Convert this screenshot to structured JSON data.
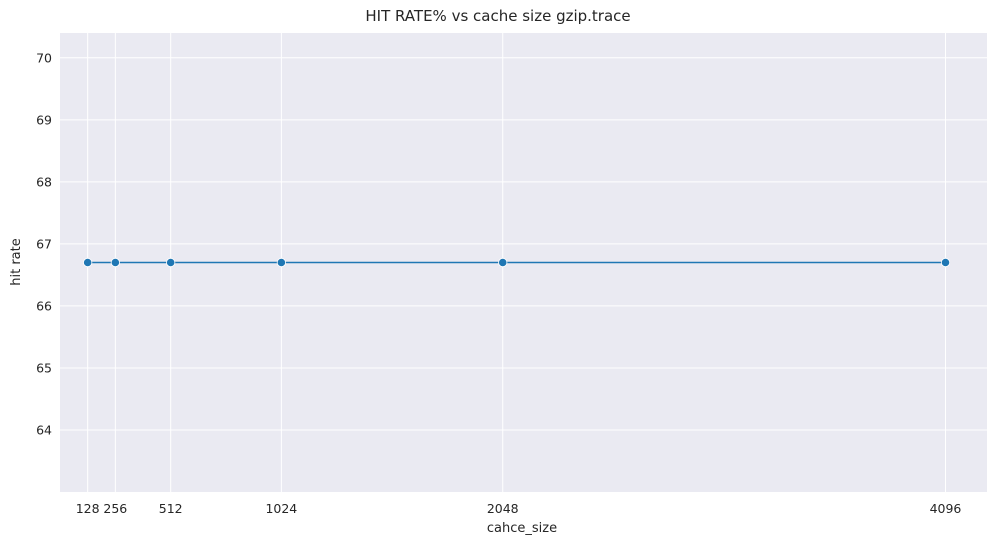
{
  "chart_data": {
    "type": "line",
    "title": "HIT RATE% vs cache size gzip.trace",
    "xlabel": "cahce_size",
    "ylabel": "hit rate",
    "x": [
      128,
      256,
      512,
      1024,
      2048,
      4096
    ],
    "series": [
      {
        "values": [
          66.7,
          66.7,
          66.7,
          66.7,
          66.7,
          66.7
        ]
      }
    ],
    "xticks": [
      "128",
      "256",
      "512",
      "1024",
      "2048",
      "4096"
    ],
    "yticks": [
      "64",
      "65",
      "66",
      "67",
      "68",
      "69",
      "70"
    ],
    "xlim": [
      0,
      4288
    ],
    "ylim": [
      63.0,
      70.4
    ],
    "grid": true,
    "line_color": "#1f77b4",
    "background_color": "#eaeaf2",
    "grid_color": "#ffffff"
  }
}
